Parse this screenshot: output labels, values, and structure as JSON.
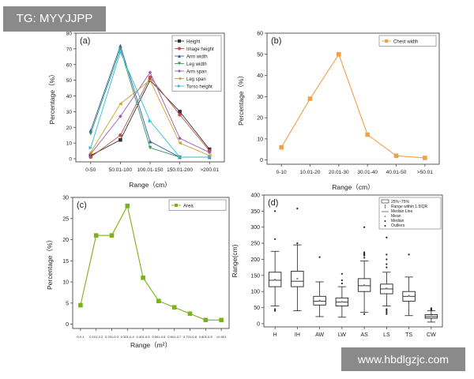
{
  "watermarks": {
    "top": "TG: MYYJJPP",
    "bottom": "www.hbdlgzjc.com"
  },
  "chart_data": [
    {
      "id": "a",
      "type": "line",
      "panel_label": "(a)",
      "xlabel": "Range（cm）",
      "ylabel": "Percentage（%）",
      "ylim": [
        -2,
        80
      ],
      "yticks": [
        0,
        10,
        20,
        30,
        40,
        50,
        60,
        70,
        80
      ],
      "categories": [
        "0-50",
        "50.01-100",
        "100.01-150",
        "150.01-200",
        ">200.01"
      ],
      "legend_position": "top-right",
      "series": [
        {
          "name": "Height",
          "color": "#333333",
          "marker": "square",
          "values": [
            2,
            12,
            50,
            30,
            6
          ]
        },
        {
          "name": "Image height",
          "color": "#c0504d",
          "marker": "circle",
          "values": [
            1,
            15,
            52,
            28,
            5
          ]
        },
        {
          "name": "Arm width",
          "color": "#2f5fb3",
          "marker": "triangle",
          "values": [
            18,
            72,
            11,
            1,
            1
          ]
        },
        {
          "name": "Leg width",
          "color": "#3a9a5a",
          "marker": "triangle-down",
          "values": [
            16,
            70,
            7,
            1,
            1
          ]
        },
        {
          "name": "Arm span",
          "color": "#9b59b6",
          "marker": "diamond",
          "values": [
            3,
            27,
            55,
            13,
            4
          ]
        },
        {
          "name": "Leg span",
          "color": "#c9a227",
          "marker": "triangle-left",
          "values": [
            4,
            35,
            50,
            10,
            2
          ]
        },
        {
          "name": "Torso height",
          "color": "#2bbfd8",
          "marker": "triangle-right",
          "values": [
            7,
            68,
            24,
            1,
            1
          ]
        }
      ]
    },
    {
      "id": "b",
      "type": "line",
      "panel_label": "(b)",
      "xlabel": "Range（cm）",
      "ylabel": "Percentage（%）",
      "ylim": [
        -2,
        60
      ],
      "yticks": [
        0,
        10,
        20,
        30,
        40,
        50,
        60
      ],
      "categories": [
        "0-10",
        "10.01-20",
        "20.01-30",
        "30.01-40",
        "40.01-50",
        ">50.01"
      ],
      "legend_position": "top-right",
      "series": [
        {
          "name": "Chest width",
          "color": "#f0a04b",
          "marker": "square",
          "values": [
            6,
            29,
            50,
            12,
            2,
            1
          ]
        }
      ]
    },
    {
      "id": "c",
      "type": "line",
      "panel_label": "(c)",
      "xlabel": "Range（m²）",
      "ylabel": "Percentage（%）",
      "ylim": [
        -1,
        30
      ],
      "yticks": [
        0,
        5,
        10,
        15,
        20,
        25,
        30
      ],
      "categories": [
        "0-0.1",
        "0.101-0.2",
        "0.201-0.3",
        "0.301-0.4",
        "0.401-0.5",
        "0.501-0.6",
        "0.601-0.7",
        "0.701-0.8",
        "0.801-0.9",
        ">0.901"
      ],
      "legend_position": "top-right",
      "series": [
        {
          "name": "Area",
          "color": "#7ab317",
          "marker": "square",
          "values": [
            4.5,
            21,
            21,
            28,
            11,
            5.5,
            4,
            2.5,
            1,
            1
          ]
        }
      ]
    },
    {
      "id": "d",
      "type": "box",
      "panel_label": "(d)",
      "xlabel": "",
      "ylabel": "Range(cm)",
      "ylim": [
        -10,
        400
      ],
      "yticks": [
        0,
        50,
        100,
        150,
        200,
        250,
        300,
        350,
        400
      ],
      "categories": [
        "H",
        "IH",
        "AW",
        "LW",
        "AS",
        "LS",
        "TS",
        "CW"
      ],
      "legend_position": "top-right",
      "legend": [
        "25%~75%",
        "Range within 1.5IQR",
        "Median Line",
        "Mean",
        "Median",
        "Outliers"
      ],
      "boxes": [
        {
          "q1": 115,
          "median": 135,
          "q3": 160,
          "mean": 137,
          "wlow": 55,
          "whigh": 225,
          "outliers": [
            40,
            45,
            263,
            350
          ]
        },
        {
          "q1": 115,
          "median": 132,
          "q3": 163,
          "mean": 140,
          "wlow": 40,
          "whigh": 245,
          "outliers": [
            250,
            358
          ]
        },
        {
          "q1": 58,
          "median": 70,
          "q3": 85,
          "mean": 72,
          "wlow": 22,
          "whigh": 130,
          "outliers": [
            207
          ]
        },
        {
          "q1": 55,
          "median": 67,
          "q3": 80,
          "mean": 68,
          "wlow": 20,
          "whigh": 115,
          "outliers": [
            125,
            135,
            155
          ]
        },
        {
          "q1": 100,
          "median": 118,
          "q3": 140,
          "mean": 120,
          "wlow": 35,
          "whigh": 195,
          "outliers": [
            30,
            205,
            212,
            215,
            218,
            222,
            300
          ]
        },
        {
          "q1": 93,
          "median": 108,
          "q3": 123,
          "mean": 110,
          "wlow": 55,
          "whigh": 160,
          "outliers": [
            30,
            35,
            40,
            45,
            175,
            185,
            200,
            215,
            268
          ]
        },
        {
          "q1": 70,
          "median": 85,
          "q3": 100,
          "mean": 87,
          "wlow": 25,
          "whigh": 145,
          "outliers": [
            215
          ]
        },
        {
          "q1": 17,
          "median": 22,
          "q3": 28,
          "mean": 23,
          "wlow": 5,
          "whigh": 40,
          "outliers": [
            42,
            45,
            48
          ]
        }
      ]
    }
  ]
}
